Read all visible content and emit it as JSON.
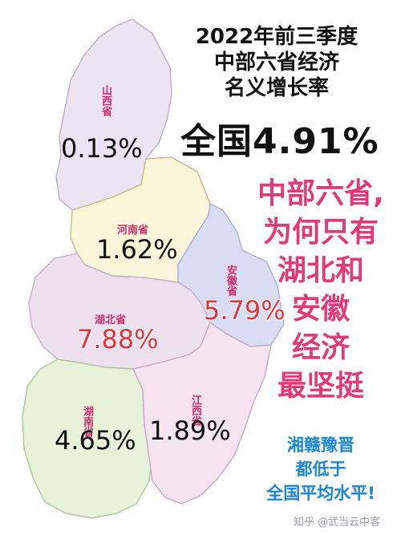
{
  "title_lines": [
    "2022年前三季度",
    "中部六省经济",
    "名义增长率"
  ],
  "national": "全国4.91%",
  "provinces": [
    {
      "key": "shanxi",
      "name": "山西省",
      "value": "0.13%",
      "fill": "#ece3f3"
    },
    {
      "key": "henan",
      "name": "河南省",
      "value": "1.62%",
      "fill": "#fbf6d9"
    },
    {
      "key": "anhui",
      "name": "安徽省",
      "value": "5.79%",
      "fill": "#d9dcf3"
    },
    {
      "key": "hubei",
      "name": "湖北省",
      "value": "7.88%",
      "fill": "#efe0ef"
    },
    {
      "key": "hunan",
      "name": "湖南省",
      "value": "4.65%",
      "fill": "#e6f2d9"
    },
    {
      "key": "jiangxi",
      "name": "江西省",
      "value": "1.89%",
      "fill": "#f5e3f0"
    }
  ],
  "headline_lines": [
    "中部六省,",
    "为何只有",
    "湖北和",
    "安徽",
    "经济",
    "最坚挺"
  ],
  "sub_lines": [
    "湘赣豫晋",
    "都低于",
    "全国平均水平!"
  ],
  "watermark": "知乎 @武当云中客",
  "colors": {
    "headline": "#e23a78",
    "sub": "#1a86d6",
    "hubei_value": "#e8323a",
    "anhui_value": "#e8323a",
    "province_name": "#d12b6e"
  }
}
